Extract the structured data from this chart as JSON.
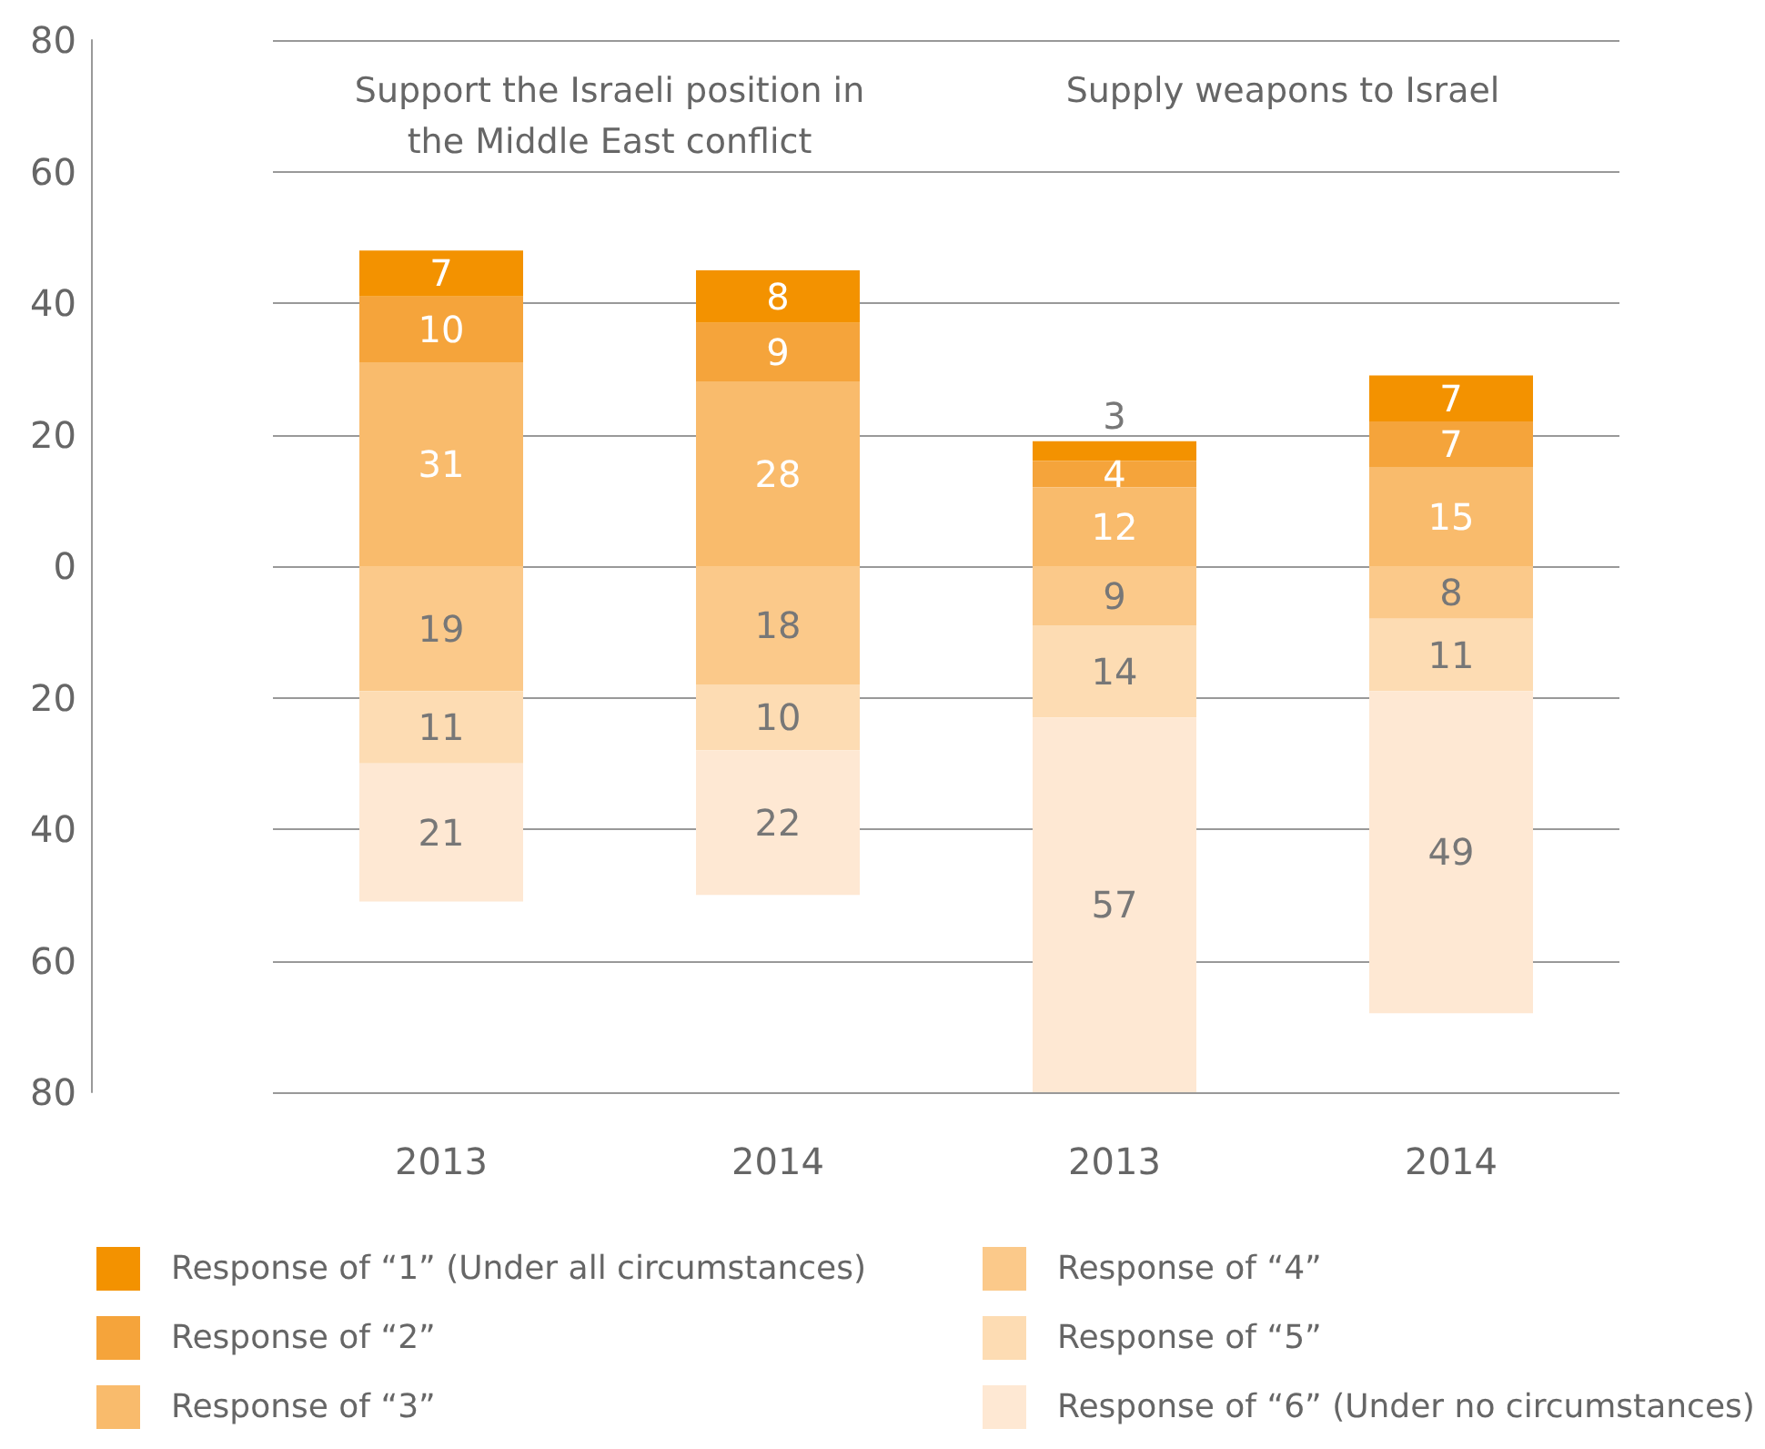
{
  "chart_data": {
    "type": "bar",
    "categories": [
      "2013",
      "2014",
      "2013",
      "2014"
    ],
    "annotations": [
      "Support the Israeli position in\nthe Middle East conflict",
      "Supply weapons to Israel"
    ],
    "ylim": [
      -80,
      80
    ],
    "yticks": [
      {
        "value": -80,
        "label": "80"
      },
      {
        "value": -60,
        "label": "60"
      },
      {
        "value": -40,
        "label": "40"
      },
      {
        "value": -20,
        "label": "20"
      },
      0,
      20,
      40,
      60,
      80
    ],
    "grid": "y",
    "legend": "bottom",
    "data_labels": true,
    "series": [
      {
        "name": "Response of “1” (Under all circumstances)",
        "color": "#f39200",
        "values": [
          7,
          8,
          3,
          7
        ],
        "base": [
          41,
          37,
          16,
          22
        ]
      },
      {
        "name": "Response of “2”",
        "color": "#f5a43b",
        "values": [
          10,
          9,
          4,
          7
        ],
        "base": [
          31,
          28,
          12,
          15
        ]
      },
      {
        "name": "Response of “3”",
        "color": "#f9bb6c",
        "values": [
          31,
          28,
          12,
          15
        ],
        "base": [
          0,
          0,
          0,
          0
        ]
      },
      {
        "name": "Response of “4”",
        "color": "#fbc98a",
        "values": [
          19,
          18,
          9,
          8
        ],
        "base": [
          -19,
          -18,
          -9,
          -8
        ]
      },
      {
        "name": "Response of “5”",
        "color": "#fddcb3",
        "values": [
          11,
          10,
          14,
          11
        ],
        "base": [
          -30,
          -28,
          -23,
          -19
        ]
      },
      {
        "name": "Response of “6” (Under no circumstances)",
        "color": "#fee8d3",
        "values": [
          21,
          22,
          57,
          49
        ],
        "base": [
          -51,
          -50,
          -80,
          -68
        ]
      }
    ]
  }
}
